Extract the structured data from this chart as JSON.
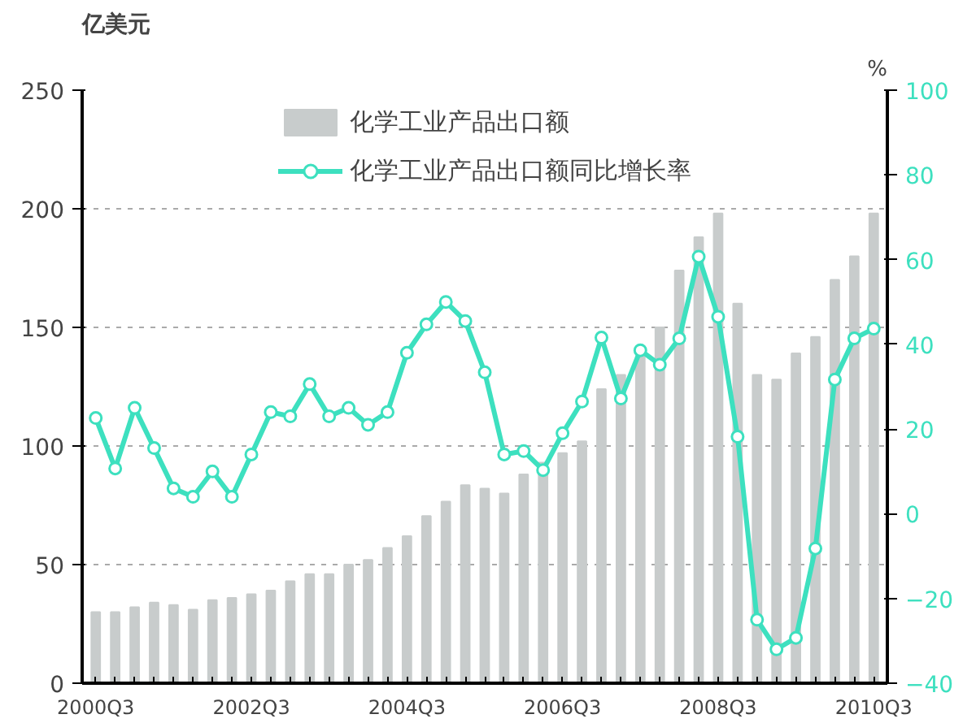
{
  "chart_data": {
    "type": "bar",
    "ylabel": "亿美元",
    "y2label": "%",
    "categories": [
      "2000Q3",
      null,
      null,
      null,
      null,
      null,
      null,
      null,
      "2002Q3",
      null,
      null,
      null,
      null,
      null,
      null,
      null,
      "2004Q3",
      null,
      null,
      null,
      null,
      null,
      null,
      null,
      "2006Q3",
      null,
      null,
      null,
      null,
      null,
      null,
      null,
      "2008Q3",
      null,
      null,
      null,
      null,
      null,
      null,
      null,
      "2010Q3"
    ],
    "series": [
      {
        "name": "化学工业产品出口额",
        "color": "#c8cccc",
        "values": [
          30,
          30,
          32,
          34,
          33,
          31,
          35,
          36,
          37.5,
          39,
          43,
          46,
          46,
          50,
          52,
          57,
          62,
          70.5,
          76.5,
          83.5,
          82,
          80,
          88,
          93,
          97,
          102,
          124,
          130,
          138,
          150,
          174,
          188,
          198,
          160,
          130,
          128,
          139,
          146,
          170,
          180,
          198
        ]
      },
      {
        "name": "化学工业产品出口额同比增长率",
        "type": "line",
        "axis": "y2",
        "color": "#3de0bf",
        "values": [
          22.6,
          10.7,
          25,
          15.5,
          6,
          4,
          10,
          4,
          14,
          24,
          23,
          30.6,
          23,
          25,
          21,
          24,
          38,
          44.7,
          50,
          45.5,
          33.4,
          14,
          14.8,
          10.3,
          19,
          26.5,
          41.6,
          27.2,
          38.6,
          35.2,
          41.4,
          60.7,
          46.5,
          18.2,
          -25,
          -32,
          -29.3,
          -8.2,
          31.7,
          41.4,
          43.7
        ]
      }
    ],
    "ylim": [
      0,
      250
    ],
    "yticks": [
      0,
      50,
      100,
      150,
      200,
      250
    ],
    "y2lim": [
      -40,
      100
    ],
    "y2ticks": [
      -40,
      -20,
      0,
      20,
      40,
      60,
      80,
      100
    ],
    "grid": "y",
    "legend": "top",
    "marker": "circle",
    "line_style": "solid"
  }
}
